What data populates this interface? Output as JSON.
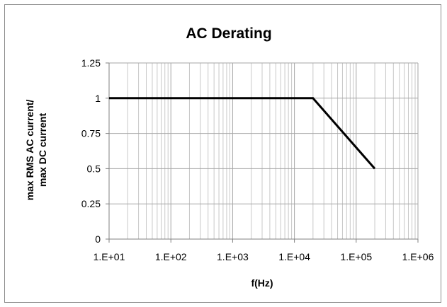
{
  "chart_data": {
    "type": "line",
    "title": "AC Derating",
    "xlabel": "f(Hz)",
    "ylabel_lines": [
      "max RMS AC current/",
      "max DC current"
    ],
    "x_scale": "log",
    "xlim": [
      10,
      1000000
    ],
    "ylim": [
      0,
      1.25
    ],
    "x_tick_values": [
      10,
      100,
      1000,
      10000,
      100000,
      1000000
    ],
    "x_tick_labels": [
      "1.E+01",
      "1.E+02",
      "1.E+03",
      "1.E+04",
      "1.E+05",
      "1.E+06"
    ],
    "y_tick_values": [
      0,
      0.25,
      0.5,
      0.75,
      1,
      1.25
    ],
    "y_tick_labels": [
      "0",
      "0.25",
      "0.5",
      "0.75",
      "1",
      "1.25"
    ],
    "grid": true,
    "legend": "none",
    "series": [
      {
        "x": [
          10,
          20000,
          200000
        ],
        "y": [
          1,
          1,
          0.5
        ],
        "color": "#000000"
      }
    ]
  }
}
